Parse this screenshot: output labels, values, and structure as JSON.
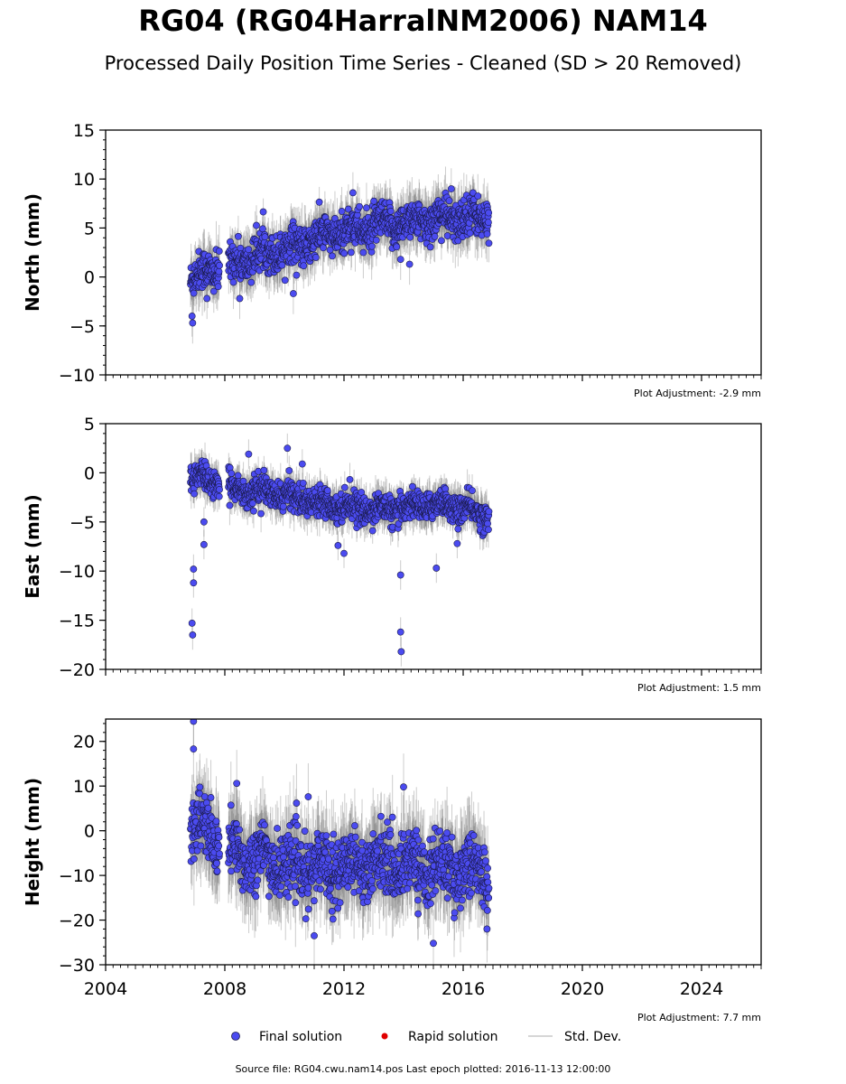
{
  "title": "RG04 (RG04HarralNM2006) NAM14",
  "subtitle": "Processed Daily Position Time Series - Cleaned (SD > 20 Removed)",
  "source_text": "Source file: RG04.cwu.nam14.pos  Last epoch plotted: 2016-11-13 12:00:00",
  "legend": [
    {
      "label": "Final solution",
      "color": "#4b4bf0",
      "marker": "circle"
    },
    {
      "label": "Rapid solution",
      "color": "#e00000",
      "marker": "dot"
    },
    {
      "label": "Std. Dev.",
      "color": "#c8c8c8",
      "marker": "line"
    }
  ],
  "colors": {
    "final": "#4b4bf0",
    "edge": "#1a1a4a",
    "stddev": "#808080"
  },
  "chart_data": [
    {
      "type": "scatter",
      "name": "north",
      "ylabel": "North (mm)",
      "ylim": [
        -10,
        15
      ],
      "yticks": [
        -10,
        -5,
        0,
        5,
        10,
        15
      ],
      "xlim": [
        2004,
        2026
      ],
      "adjustment": "Plot Adjustment: -2.9 mm",
      "show_x_tick_labels": false,
      "trend": [
        [
          2006.9,
          0.0
        ],
        [
          2008.2,
          1.2
        ],
        [
          2009.5,
          2.6
        ],
        [
          2010.5,
          3.2
        ],
        [
          2011.5,
          4.3
        ],
        [
          2012.5,
          4.9
        ],
        [
          2013.5,
          5.3
        ],
        [
          2014.5,
          5.7
        ],
        [
          2015.5,
          6.0
        ],
        [
          2016.9,
          6.2
        ]
      ],
      "noise": 1.4,
      "outliers": [
        [
          2006.9,
          -4.0
        ],
        [
          2006.92,
          -4.7
        ],
        [
          2007.4,
          -2.2
        ],
        [
          2008.5,
          -2.2
        ],
        [
          2010.3,
          -1.7
        ],
        [
          2013.9,
          1.8
        ],
        [
          2014.2,
          1.3
        ],
        [
          2012.3,
          8.6
        ],
        [
          2015.6,
          9.0
        ]
      ]
    },
    {
      "type": "scatter",
      "name": "east",
      "ylabel": "East (mm)",
      "ylim": [
        -20,
        5
      ],
      "yticks": [
        -20,
        -15,
        -10,
        -5,
        0,
        5
      ],
      "xlim": [
        2004,
        2026
      ],
      "adjustment": "Plot Adjustment: 1.5 mm",
      "show_x_tick_labels": false,
      "trend": [
        [
          2006.9,
          -0.3
        ],
        [
          2008.2,
          -1.6
        ],
        [
          2009.5,
          -2.0
        ],
        [
          2010.5,
          -2.6
        ],
        [
          2011.5,
          -3.1
        ],
        [
          2012.5,
          -3.6
        ],
        [
          2013.5,
          -3.8
        ],
        [
          2014.5,
          -3.3
        ],
        [
          2015.5,
          -3.2
        ],
        [
          2016.9,
          -4.5
        ]
      ],
      "noise": 1.0,
      "outliers": [
        [
          2006.95,
          -9.8
        ],
        [
          2006.95,
          -11.2
        ],
        [
          2006.9,
          -15.3
        ],
        [
          2006.92,
          -16.5
        ],
        [
          2007.3,
          -5.0
        ],
        [
          2007.3,
          -7.3
        ],
        [
          2008.8,
          1.9
        ],
        [
          2010.1,
          2.5
        ],
        [
          2010.6,
          0.9
        ],
        [
          2011.8,
          -7.4
        ],
        [
          2012.0,
          -8.2
        ],
        [
          2013.9,
          -10.4
        ],
        [
          2013.9,
          -16.2
        ],
        [
          2013.92,
          -18.2
        ],
        [
          2015.1,
          -9.7
        ],
        [
          2015.8,
          -7.2
        ]
      ]
    },
    {
      "type": "scatter",
      "name": "height",
      "ylabel": "Height (mm)",
      "ylim": [
        -30,
        25
      ],
      "yticks": [
        -30,
        -20,
        -10,
        0,
        10,
        20
      ],
      "xlim": [
        2004,
        2026
      ],
      "xticks": [
        2004,
        2008,
        2012,
        2016,
        2020,
        2024
      ],
      "adjustment": "Plot Adjustment: 7.7 mm",
      "show_x_tick_labels": true,
      "trend": [
        [
          2006.9,
          2.0
        ],
        [
          2007.5,
          -1.0
        ],
        [
          2008.2,
          -5.0
        ],
        [
          2009.5,
          -6.5
        ],
        [
          2010.5,
          -8.5
        ],
        [
          2011.5,
          -8.0
        ],
        [
          2012.5,
          -7.5
        ],
        [
          2013.5,
          -7.0
        ],
        [
          2014.5,
          -8.0
        ],
        [
          2015.5,
          -8.5
        ],
        [
          2016.9,
          -9.0
        ]
      ],
      "noise": 5.0,
      "outliers": [
        [
          2006.95,
          24.5
        ],
        [
          2006.95,
          18.3
        ],
        [
          2008.4,
          10.6
        ],
        [
          2010.8,
          7.6
        ],
        [
          2015.0,
          -25.2
        ],
        [
          2011.0,
          -23.5
        ],
        [
          2016.8,
          -22.0
        ],
        [
          2014.0,
          9.8
        ]
      ]
    }
  ],
  "data_span": [
    2006.85,
    2016.87
  ],
  "gaps": [
    [
      2007.82,
      2008.12
    ]
  ]
}
